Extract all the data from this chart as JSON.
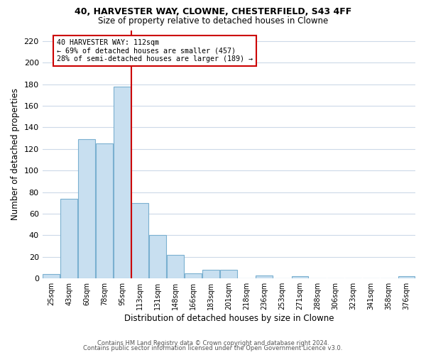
{
  "title1": "40, HARVESTER WAY, CLOWNE, CHESTERFIELD, S43 4FF",
  "title2": "Size of property relative to detached houses in Clowne",
  "xlabel": "Distribution of detached houses by size in Clowne",
  "ylabel": "Number of detached properties",
  "bin_labels": [
    "25sqm",
    "43sqm",
    "60sqm",
    "78sqm",
    "95sqm",
    "113sqm",
    "131sqm",
    "148sqm",
    "166sqm",
    "183sqm",
    "201sqm",
    "218sqm",
    "236sqm",
    "253sqm",
    "271sqm",
    "288sqm",
    "306sqm",
    "323sqm",
    "341sqm",
    "358sqm",
    "376sqm"
  ],
  "bar_values": [
    4,
    74,
    129,
    125,
    178,
    70,
    40,
    22,
    5,
    8,
    8,
    0,
    3,
    0,
    2,
    0,
    0,
    0,
    0,
    0,
    2
  ],
  "bar_color": "#c8dff0",
  "bar_edge_color": "#7ab0d0",
  "vline_color": "#cc0000",
  "annotation_text": "40 HARVESTER WAY: 112sqm\n← 69% of detached houses are smaller (457)\n28% of semi-detached houses are larger (189) →",
  "annotation_box_color": "#ffffff",
  "annotation_box_edge": "#cc0000",
  "ylim": [
    0,
    230
  ],
  "yticks": [
    0,
    20,
    40,
    60,
    80,
    100,
    120,
    140,
    160,
    180,
    200,
    220
  ],
  "footer1": "Contains HM Land Registry data © Crown copyright and database right 2024.",
  "footer2": "Contains public sector information licensed under the Open Government Licence v3.0.",
  "bg_color": "#ffffff",
  "grid_color": "#ccd9e8"
}
